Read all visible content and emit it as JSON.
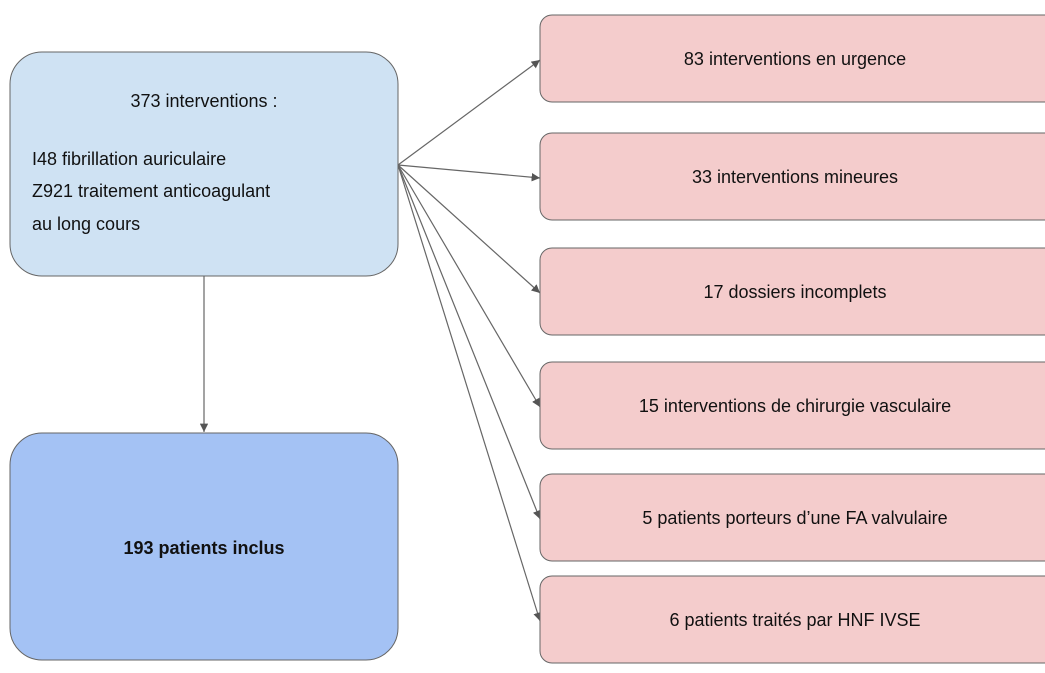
{
  "source": {
    "title": "373 interventions :",
    "lines": [
      "I48 fibrillation auriculaire",
      "Z921 traitement anticoagulant",
      "au long cours"
    ]
  },
  "included": {
    "label": "193 patients inclus"
  },
  "exclusions": [
    "83 interventions en urgence",
    "33 interventions mineures",
    "17 dossiers incomplets",
    "15 interventions de chirurgie vasculaire",
    "5 patients porteurs d’une FA valvulaire",
    "6 patients traités par HNF IVSE"
  ]
}
